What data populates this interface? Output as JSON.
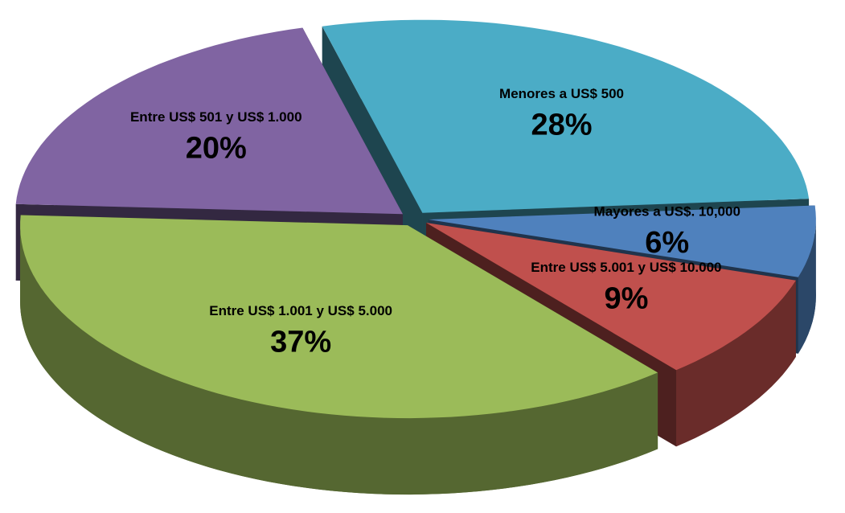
{
  "chart_data": {
    "type": "pie",
    "categories": [
      "Menores a US$ 500",
      "Mayores a US$. 10,000",
      "Entre US$ 5.001 y US$ 10.000",
      "Entre US$ 1.001 y US$ 5.000",
      "Entre US$ 501 y US$ 1.000"
    ],
    "values": [
      28,
      6,
      9,
      37,
      20
    ],
    "value_labels": [
      "28%",
      "6%",
      "9%",
      "37%",
      "20%"
    ],
    "colors": [
      "#4bacc6",
      "#4f81bd",
      "#c0504d",
      "#9bbb59",
      "#8064a2"
    ]
  }
}
